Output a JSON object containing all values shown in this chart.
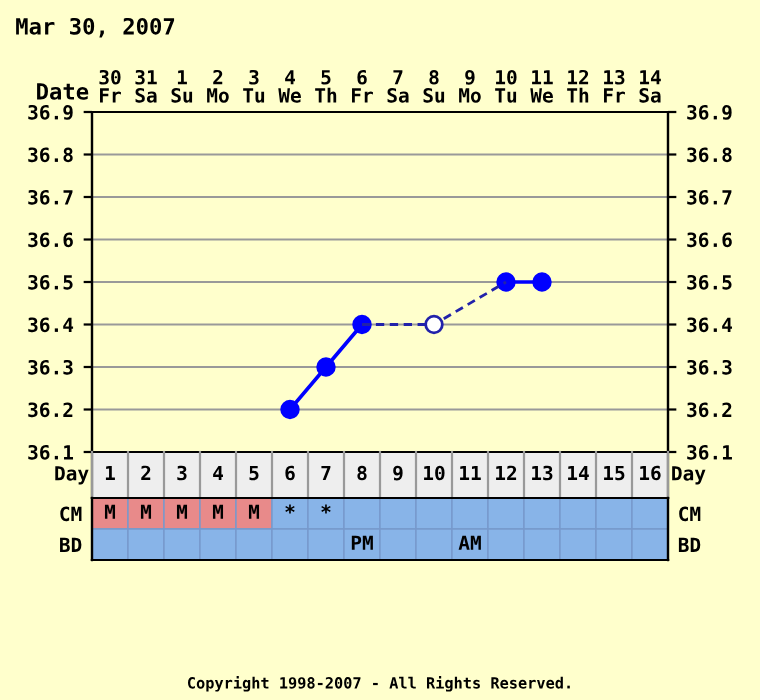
{
  "chart_data": [
    {
      "type": "line",
      "title": "Mar 30, 2007",
      "xlabel": "Date",
      "categories": [
        "30\nFr",
        "31\nSa",
        "1\nSu",
        "2\nMo",
        "3\nTu",
        "4\nWe",
        "5\nTh",
        "6\nFr",
        "7\nSa",
        "8\nSu",
        "9\nMo",
        "10\nTu",
        "11\nWe",
        "12\nTh",
        "13\nFr",
        "14\nSa"
      ],
      "ylim": [
        36.1,
        36.9
      ],
      "yticks": [
        36.1,
        36.2,
        36.3,
        36.4,
        36.5,
        36.6,
        36.7,
        36.8,
        36.9
      ],
      "y2lim": [
        36.1,
        36.9
      ],
      "y2ticks": [
        36.1,
        36.2,
        36.3,
        36.4,
        36.5,
        36.6,
        36.7,
        36.8,
        36.9
      ],
      "grid": true,
      "series": [
        {
          "type": "line",
          "color": "#0000ff",
          "marker": "circle",
          "line_style": "solid",
          "values": [
            null,
            null,
            null,
            null,
            null,
            36.2,
            36.3,
            36.4,
            null,
            null,
            null,
            36.5,
            36.5,
            null,
            null,
            null
          ]
        },
        {
          "type": "line",
          "color": "#2222aa",
          "marker": "none",
          "line_style": "dashed",
          "values": [
            null,
            null,
            null,
            null,
            null,
            null,
            null,
            36.4,
            null,
            36.4,
            null,
            36.5,
            null,
            null,
            null,
            null
          ]
        },
        {
          "type": "scatter",
          "color": "#2222aa",
          "marker": "circle",
          "values": [
            null,
            null,
            null,
            null,
            null,
            null,
            null,
            null,
            null,
            36.4,
            null,
            null,
            null,
            null,
            null,
            null
          ]
        }
      ]
    },
    {
      "type": "heatmap",
      "xlabel": "Day",
      "categories": [
        "1",
        "2",
        "3",
        "4",
        "5",
        "6",
        "7",
        "8",
        "9",
        "10",
        "11",
        "12",
        "13",
        "14",
        "15",
        "16"
      ],
      "y_categories": [
        "CM",
        "BD"
      ],
      "y2_categories": [
        "CM",
        "BD"
      ],
      "cells": [
        [
          null,
          null,
          null,
          null,
          null,
          null,
          null,
          null,
          null,
          null,
          null,
          null,
          null,
          null,
          null,
          null
        ],
        [
          null,
          null,
          null,
          null,
          null,
          null,
          null,
          null,
          null,
          null,
          null,
          null,
          null,
          null,
          null,
          null
        ]
      ],
      "cell_labels": [
        [
          "M",
          "M",
          "M",
          "M",
          "M",
          "*",
          "*",
          null,
          null,
          null,
          null,
          null,
          null,
          null,
          null,
          null
        ],
        [
          null,
          null,
          null,
          null,
          null,
          null,
          null,
          "PM",
          null,
          null,
          "AM",
          null,
          null,
          null,
          null,
          null
        ]
      ],
      "colors": [
        [
          "#e88a8a",
          "#e88a8a",
          "#e88a8a",
          "#e88a8a",
          "#e88a8a",
          "#88b4e8",
          "#88b4e8",
          "#88b4e8",
          "#88b4e8",
          "#88b4e8",
          "#88b4e8",
          "#88b4e8",
          "#88b4e8",
          "#88b4e8",
          "#88b4e8",
          "#88b4e8"
        ],
        [
          "#88b4e8",
          "#88b4e8",
          "#88b4e8",
          "#88b4e8",
          "#88b4e8",
          "#88b4e8",
          "#88b4e8",
          "#88b4e8",
          "#88b4e8",
          "#88b4e8",
          "#88b4e8",
          "#88b4e8",
          "#88b4e8",
          "#88b4e8",
          "#88b4e8",
          "#88b4e8"
        ]
      ],
      "annotations": [
        "Copyright 1998-2007 - All Rights Reserved."
      ]
    }
  ]
}
